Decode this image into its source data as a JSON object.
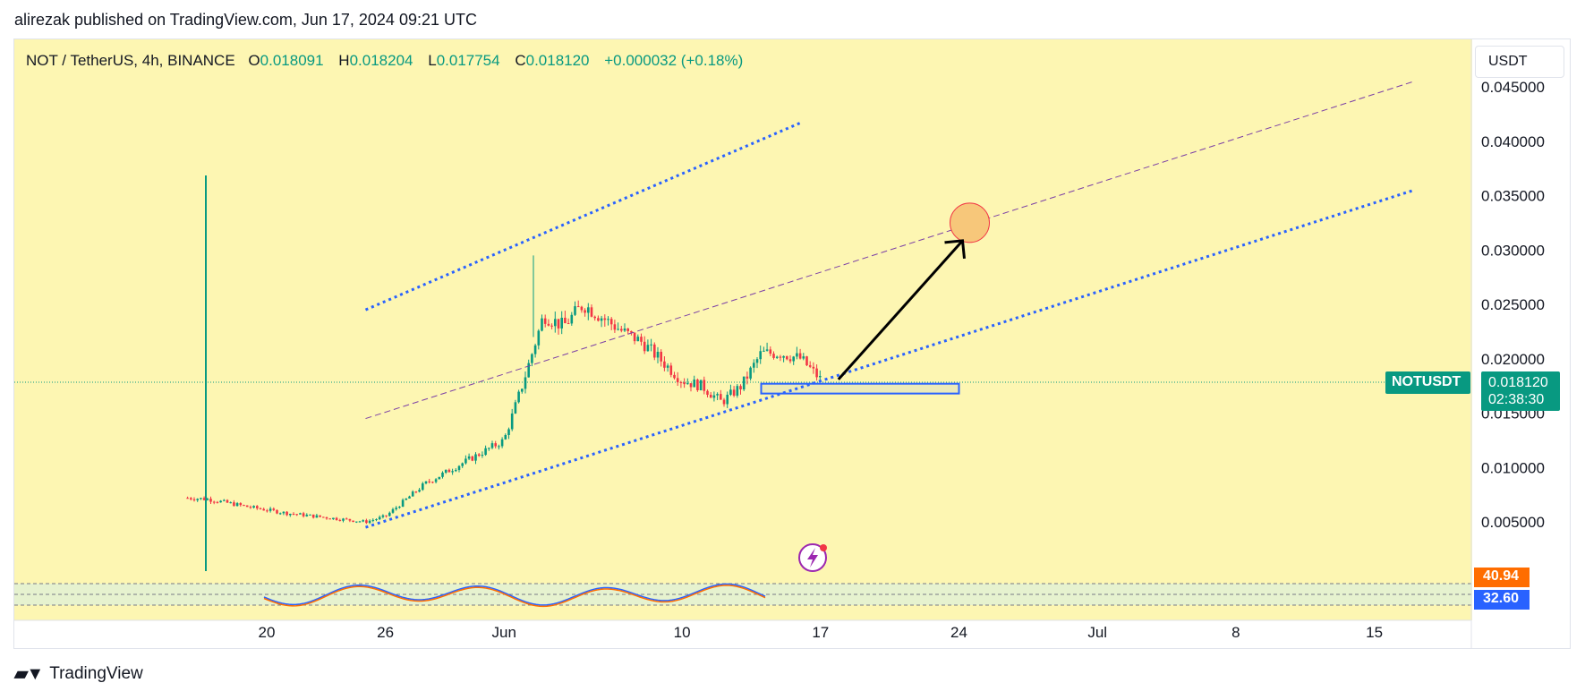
{
  "header": {
    "published": "alirezak published on TradingView.com, Jun 17, 2024 09:21 UTC"
  },
  "legend": {
    "symbol": "NOT / TetherUS, 4h, BINANCE",
    "o_label": "O",
    "o_value": "0.018091",
    "h_label": "H",
    "h_value": "0.018204",
    "l_label": "L",
    "l_value": "0.017754",
    "c_label": "C",
    "c_value": "0.018120",
    "change": "+0.000032 (+0.18%)"
  },
  "price_scale": {
    "currency_button": "USDT"
  },
  "last_price": {
    "symbol": "NOTUSDT",
    "price": "0.018120",
    "countdown": "02:38:30"
  },
  "oscillator": {
    "value_a": "40.94",
    "value_b": "32.60"
  },
  "footer": {
    "brand": "TradingView",
    "logo": "tradingview-logo-icon"
  },
  "colors": {
    "background": "#fdf6b2",
    "up": "#089981",
    "down": "#f23645",
    "channel": "#2962ff",
    "midline": "#7b3fa6",
    "target": "#f7c77a"
  },
  "chart_data": {
    "type": "line",
    "title": "NOT / TetherUS, 4h, BINANCE",
    "ylabel": "",
    "xlabel": "",
    "ylim": [
      0,
      0.046
    ],
    "y_ticks": [
      "0.005000",
      "0.010000",
      "0.015000",
      "0.020000",
      "0.025000",
      "0.030000",
      "0.035000",
      "0.040000",
      "0.045000"
    ],
    "x_ticks": [
      "20",
      "26",
      "Jun",
      "10",
      "17",
      "24",
      "Jul",
      "8",
      "15"
    ],
    "series": [
      {
        "x": [
          "May 16",
          "May 17",
          "May 19",
          "May 21",
          "May 23",
          "May 25",
          "May 26",
          "May 28",
          "May 30",
          "Jun 1",
          "Jun 2",
          "Jun 3",
          "Jun 4",
          "Jun 5",
          "Jun 7",
          "Jun 8",
          "Jun 10",
          "Jun 11",
          "Jun 12",
          "Jun 13",
          "Jun 14",
          "Jun 15",
          "Jun 16",
          "Jun 17"
        ],
        "values": [
          0.0072,
          0.0071,
          0.0064,
          0.0058,
          0.0054,
          0.005,
          0.0055,
          0.0085,
          0.0105,
          0.0125,
          0.018,
          0.024,
          0.023,
          0.025,
          0.0225,
          0.0215,
          0.018,
          0.0175,
          0.016,
          0.0175,
          0.0205,
          0.0205,
          0.02,
          0.0181
        ]
      }
    ],
    "annotations": {
      "channel_upper": [
        [
          "May 25",
          0.0245
        ],
        [
          "Jun 16",
          0.0417
        ]
      ],
      "channel_mid": [
        [
          "May 25",
          0.0145
        ],
        [
          "Jul 17",
          0.0455
        ]
      ],
      "channel_lower": [
        [
          "May 25",
          0.0045
        ],
        [
          "Jul 17",
          0.0355
        ]
      ],
      "support_zone": [
        0.0168,
        0.0177
      ],
      "target": 0.0325
    }
  }
}
